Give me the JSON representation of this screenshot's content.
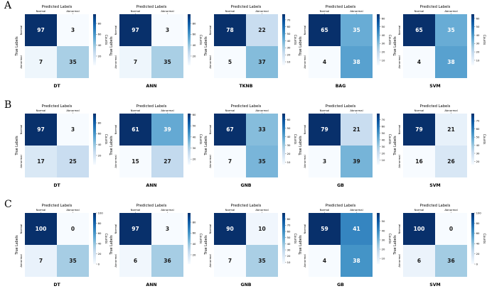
{
  "chart_data": {
    "type": "heatmap",
    "rows": [
      {
        "row_label": "A",
        "matrices": [
          {
            "title": "DT",
            "values": [
              [
                97,
                3
              ],
              [
                7,
                35
              ]
            ],
            "cbar_ticks": [
              "80",
              "60",
              "40",
              "20"
            ]
          },
          {
            "title": "ANN",
            "values": [
              [
                97,
                3
              ],
              [
                7,
                35
              ]
            ],
            "cbar_ticks": [
              "80",
              "60",
              "40",
              "20"
            ]
          },
          {
            "title": "TKNB",
            "values": [
              [
                78,
                22
              ],
              [
                5,
                37
              ]
            ],
            "cbar_ticks": [
              "70",
              "60",
              "50",
              "40",
              "30",
              "20",
              "10"
            ]
          },
          {
            "title": "BAG",
            "values": [
              [
                65,
                35
              ],
              [
                4,
                38
              ]
            ],
            "cbar_ticks": [
              "60",
              "50",
              "40",
              "30",
              "20",
              "10"
            ]
          },
          {
            "title": "SVM",
            "values": [
              [
                65,
                35
              ],
              [
                4,
                38
              ]
            ],
            "cbar_ticks": [
              "60",
              "50",
              "40",
              "30",
              "20",
              "10"
            ]
          }
        ]
      },
      {
        "row_label": "B",
        "matrices": [
          {
            "title": "DT",
            "values": [
              [
                97,
                3
              ],
              [
                17,
                25
              ]
            ],
            "cbar_ticks": [
              "80",
              "60",
              "40",
              "20"
            ]
          },
          {
            "title": "ANN",
            "values": [
              [
                61,
                39
              ],
              [
                15,
                27
              ]
            ],
            "cbar_ticks": [
              "60",
              "50",
              "40",
              "30",
              "20"
            ]
          },
          {
            "title": "GNB",
            "values": [
              [
                67,
                33
              ],
              [
                7,
                35
              ]
            ],
            "cbar_ticks": [
              "60",
              "50",
              "40",
              "30",
              "20",
              "10"
            ]
          },
          {
            "title": "GB",
            "values": [
              [
                79,
                21
              ],
              [
                3,
                39
              ]
            ],
            "cbar_ticks": [
              "70",
              "60",
              "50",
              "40",
              "30",
              "20",
              "10"
            ]
          },
          {
            "title": "SVM",
            "values": [
              [
                79,
                21
              ],
              [
                16,
                26
              ]
            ],
            "cbar_ticks": [
              "70",
              "60",
              "50",
              "40",
              "30",
              "20"
            ]
          }
        ]
      },
      {
        "row_label": "C",
        "matrices": [
          {
            "title": "DT",
            "values": [
              [
                100,
                0
              ],
              [
                7,
                35
              ]
            ],
            "cbar_ticks": [
              "100",
              "80",
              "60",
              "40",
              "20",
              "0"
            ]
          },
          {
            "title": "ANN",
            "values": [
              [
                97,
                3
              ],
              [
                6,
                36
              ]
            ],
            "cbar_ticks": [
              "80",
              "60",
              "40",
              "20"
            ]
          },
          {
            "title": "GNB",
            "values": [
              [
                90,
                10
              ],
              [
                7,
                35
              ]
            ],
            "cbar_ticks": [
              "80",
              "70",
              "60",
              "50",
              "40",
              "30",
              "20",
              "10"
            ]
          },
          {
            "title": "GB",
            "values": [
              [
                59,
                41
              ],
              [
                4,
                38
              ]
            ],
            "cbar_ticks": [
              "50",
              "40",
              "30",
              "20",
              "10"
            ]
          },
          {
            "title": "SVM",
            "values": [
              [
                100,
                0
              ],
              [
                6,
                36
              ]
            ],
            "cbar_ticks": [
              "100",
              "80",
              "60",
              "40",
              "20",
              "0"
            ]
          }
        ]
      }
    ],
    "xlabel": "Predicted Labels",
    "ylabel": "True Labels",
    "class_labels": [
      "Normal",
      "Abnormal"
    ],
    "colorbar_label": "Counts",
    "colormap": "Blues",
    "colormap_light": "#f7fbff",
    "colormap_dark": "#08306b"
  }
}
